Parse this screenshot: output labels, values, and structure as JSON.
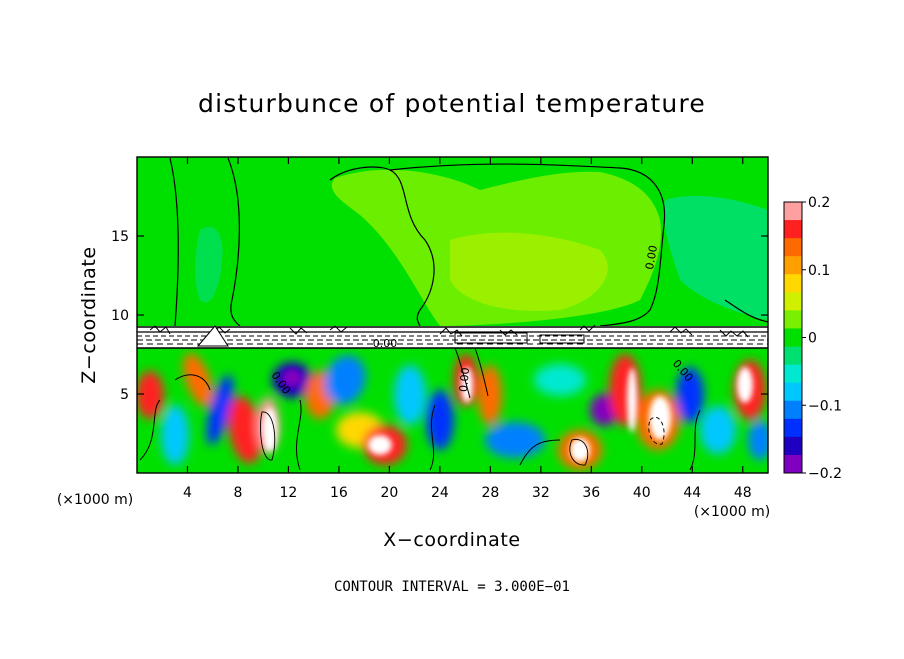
{
  "chart_data": {
    "type": "heatmap",
    "title": "disturbunce of potential temperature",
    "xlabel": "X−coordinate",
    "ylabel": "Z−coordinate",
    "x_unit_label": "(×1000 m)",
    "z_unit_label": "(×1000 m)",
    "xlim": [
      0,
      50
    ],
    "ylim": [
      0,
      20
    ],
    "x_ticks": [
      4,
      8,
      12,
      16,
      20,
      24,
      28,
      32,
      36,
      40,
      44,
      48
    ],
    "x_tick_labels": [
      "4",
      "8",
      "12",
      "16",
      "20",
      "24",
      "28",
      "32",
      "36",
      "40",
      "44",
      "48"
    ],
    "y_ticks": [
      5,
      10,
      15
    ],
    "y_tick_labels": [
      "5",
      "10",
      "15"
    ],
    "colorbar": {
      "min": -0.2,
      "max": 0.2,
      "ticks": [
        0.2,
        0.1,
        0,
        -0.1,
        -0.2
      ],
      "tick_labels": [
        "0.2",
        "0.1",
        "0",
        "−0.1",
        "−0.2"
      ],
      "colors": [
        "#ffa0a0",
        "#ff2020",
        "#ff6a00",
        "#ffa000",
        "#ffd800",
        "#d0f000",
        "#78f000",
        "#00e000",
        "#00e070",
        "#00e8d0",
        "#00c8ff",
        "#0080ff",
        "#0030ff",
        "#2000c0",
        "#8000c0"
      ]
    },
    "contour_interval_text": "CONTOUR INTERVAL = 3.000E−01",
    "contour_labels": [
      "0.00",
      "0.00",
      "0.00",
      "0.00",
      "0.00"
    ],
    "upper_layer": {
      "z_range": [
        9.3,
        20
      ],
      "value": 0.0
    },
    "inversion_layer": {
      "z_range": [
        7.8,
        9.3
      ]
    },
    "lower_layer": {
      "z_range": [
        0,
        7.8
      ],
      "value_range": [
        -0.2,
        0.2
      ]
    },
    "grid": false
  },
  "colors": {
    "background": "#ffffff",
    "upper_green": "#00e000",
    "light_green": "#78f000",
    "cyan_green": "#00e070"
  }
}
